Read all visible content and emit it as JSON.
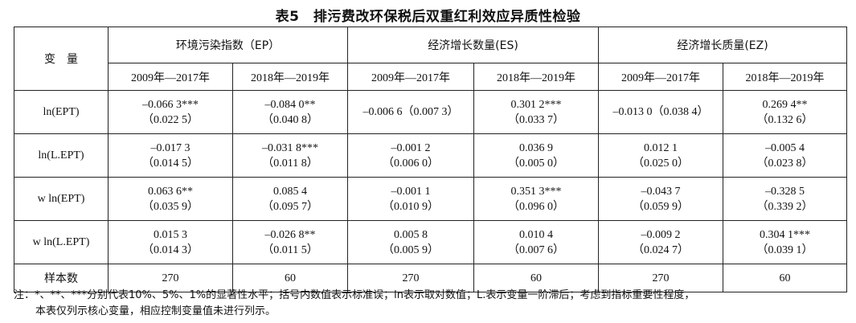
{
  "title": "表5　排污费改环保税后双重红利效应异质性检验",
  "headers": {
    "variable": "变　量",
    "groups": [
      "环境污染指数（EP）",
      "经济增长数量(ES)",
      "经济增长质量(EZ)"
    ],
    "periods": [
      "2009年—2017年",
      "2018年—2019年",
      "2009年—2017年",
      "2018年—2019年",
      "2009年—2017年",
      "2018年—2019年"
    ]
  },
  "rows": [
    {
      "label": "ln(EPT)",
      "cells": [
        [
          "–0.066 3***",
          "（0.022 5）"
        ],
        [
          "–0.084 0**",
          "（0.040 8）"
        ],
        [
          "–0.006 6（0.007 3）",
          ""
        ],
        [
          "0.301 2***",
          "（0.033 7）"
        ],
        [
          "–0.013 0（0.038 4）",
          ""
        ],
        [
          "0.269 4**",
          "（0.132 6）"
        ]
      ]
    },
    {
      "label": "ln(L.EPT)",
      "cells": [
        [
          "–0.017 3",
          "（0.014 5）"
        ],
        [
          "–0.031 8***",
          "（0.011 8）"
        ],
        [
          "–0.001 2",
          "（0.006 0）"
        ],
        [
          "0.036 9",
          "（0.005 0）"
        ],
        [
          "0.012 1",
          "（0.025 0）"
        ],
        [
          "–0.005 4",
          "（0.023 8）"
        ]
      ]
    },
    {
      "label": "w ln(EPT)",
      "cells": [
        [
          "0.063 6**",
          "（0.035 9）"
        ],
        [
          "0.085 4",
          "（0.095 7）"
        ],
        [
          "–0.001 1",
          "（0.010 9）"
        ],
        [
          "0.351 3***",
          "（0.096 0）"
        ],
        [
          "–0.043 7",
          "（0.059 9）"
        ],
        [
          "–0.328 5",
          "（0.339 2）"
        ]
      ]
    },
    {
      "label": "w ln(L.EPT)",
      "cells": [
        [
          "0.015 3",
          "（0.014 3）"
        ],
        [
          "–0.026 8**",
          "（0.011 5）"
        ],
        [
          "0.005 8",
          "（0.005 9）"
        ],
        [
          "0.010 4",
          "（0.007 6）"
        ],
        [
          "–0.009 2",
          "（0.024 7）"
        ],
        [
          "0.304 1***",
          "（0.039 1）"
        ]
      ]
    }
  ],
  "sample": {
    "label": "样本数",
    "values": [
      "270",
      "60",
      "270",
      "60",
      "270",
      "60"
    ]
  },
  "note": {
    "line1": "注：*、**、***分别代表10%、5%、1%的显著性水平；括号内数值表示标准误；ln表示取对数值；L.表示变量一阶滞后；考虑到指标重要性程度，",
    "line2": "本表仅列示核心变量，相应控制变量值未进行列示。"
  }
}
